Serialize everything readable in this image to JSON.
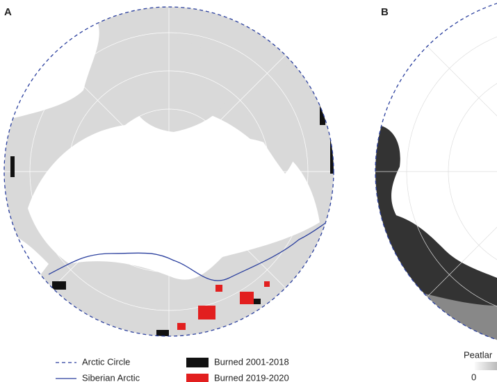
{
  "panels": [
    {
      "label": "A"
    },
    {
      "label": "B"
    }
  ],
  "legend": {
    "items": [
      "Arctic Circle",
      "Siberian Arctic",
      "Burned 2001-2018",
      "Burned 2019-2020"
    ]
  },
  "colorbar": {
    "title": "Peatlar",
    "min_label": 0
  }
}
